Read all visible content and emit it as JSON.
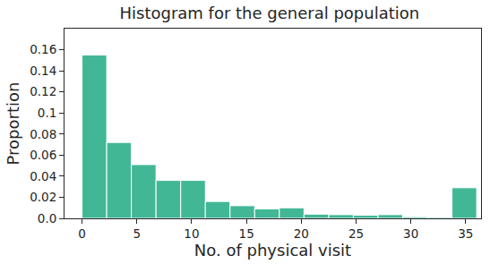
{
  "chart_data": {
    "type": "histogram",
    "title": "Histogram for the general population",
    "x_label": "No. of physical visit",
    "y_label": "Proportion",
    "bins": [
      0,
      2.25,
      4.5,
      6.75,
      9,
      11.25,
      13.5,
      15.75,
      18,
      20.25,
      22.5,
      24.75,
      27,
      29.25,
      31.5,
      33.75,
      36
    ],
    "values": [
      0.155,
      0.072,
      0.051,
      0.036,
      0.036,
      0.016,
      0.012,
      0.009,
      0.01,
      0.004,
      0.0035,
      0.003,
      0.0035,
      0.0015,
      0.001,
      0.029
    ],
    "color": "#41b796",
    "xlim": [
      -1.6,
      36.4
    ],
    "xticks": [
      0,
      5,
      10,
      15,
      20,
      25,
      30,
      35
    ],
    "ylim": [
      0,
      0.18
    ],
    "yticks": [
      {
        "value": 0,
        "label": "0.0"
      },
      0.02,
      0.04,
      0.06,
      0.08,
      0.1,
      0.12,
      0.14,
      0.16
    ],
    "grid": false
  }
}
